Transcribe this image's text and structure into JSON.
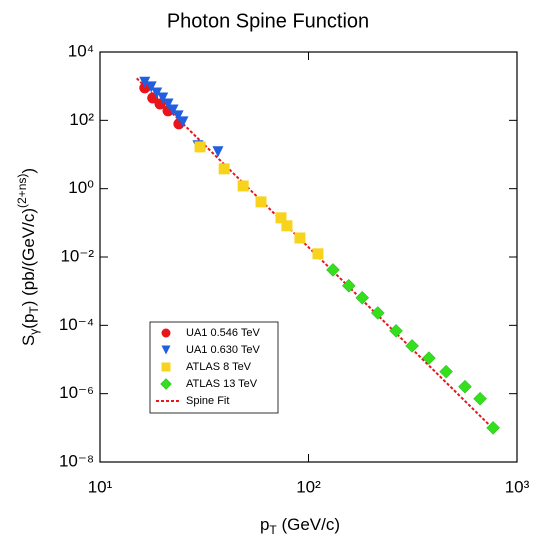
{
  "chart_data": {
    "type": "scatter",
    "title": "Photon Spine Function",
    "xlabel_parts": [
      "p",
      "T",
      " (GeV/c)"
    ],
    "ylabel_parts": [
      "S",
      "γ",
      "(p",
      "T",
      ") (pb/(GeV/c)",
      "(2+ns)",
      ")"
    ],
    "xlog": true,
    "ylog": true,
    "legend": "lower left",
    "xlim": [
      10,
      1000
    ],
    "xticks": [
      {
        "value": 10,
        "label": "10¹"
      },
      {
        "value": 100,
        "label": "10²"
      },
      {
        "value": 1000,
        "label": "10³"
      }
    ],
    "ylim": [
      1e-08,
      10000.0
    ],
    "yticks": [
      {
        "value": 10000.0,
        "label": "10⁴"
      },
      {
        "value": 100,
        "label": "10²"
      },
      {
        "value": 1,
        "label": "10⁰"
      },
      {
        "value": 0.01,
        "label": "10⁻²"
      },
      {
        "value": 0.0001,
        "label": "10⁻⁴"
      },
      {
        "value": 1e-06,
        "label": "10⁻⁶"
      },
      {
        "value": 1e-08,
        "label": "10⁻⁸"
      }
    ],
    "series": [
      {
        "name": "UA1 0.546 TeV",
        "color": "#e8161b",
        "marker": "circle",
        "x": [
          16.4,
          17.9,
          19.4,
          21.2,
          23.9
        ],
        "values": [
          890,
          450,
          300,
          190,
          79
        ]
      },
      {
        "name": "UA1 0.630 TeV",
        "color": "#1f5fe0",
        "marker": "triangle",
        "x": [
          16.4,
          17.6,
          18.7,
          20,
          21.2,
          22.4,
          23.7,
          25,
          29.5,
          36.8
        ],
        "values": [
          1300,
          950,
          630,
          450,
          300,
          200,
          135,
          90,
          18,
          12
        ]
      },
      {
        "name": "ATLAS 8 TeV",
        "color": "#f7d31e",
        "marker": "square",
        "x": [
          30.2,
          39.4,
          48.6,
          59.2,
          73.8,
          78.8,
          91,
          111
        ],
        "values": [
          16.7,
          3.8,
          1.2,
          0.41,
          0.14,
          0.082,
          0.036,
          0.0124
        ]
      },
      {
        "name": "ATLAS 13 TeV",
        "color": "#33e01b",
        "marker": "diamond",
        "x": [
          131,
          156,
          181,
          215,
          263,
          314,
          378,
          457,
          563,
          665,
          768
        ],
        "values": [
          0.0042,
          0.00144,
          0.00064,
          0.00023,
          6.9e-05,
          2.5e-05,
          1.1e-05,
          4.4e-06,
          1.6e-06,
          7.1e-07,
          1e-07
        ]
      },
      {
        "name": "Spine Fit",
        "color": "#e8161b",
        "marker": "dashed-line",
        "x": [
          15,
          800
        ],
        "values": [
          1700,
          7.4e-08
        ]
      }
    ]
  }
}
